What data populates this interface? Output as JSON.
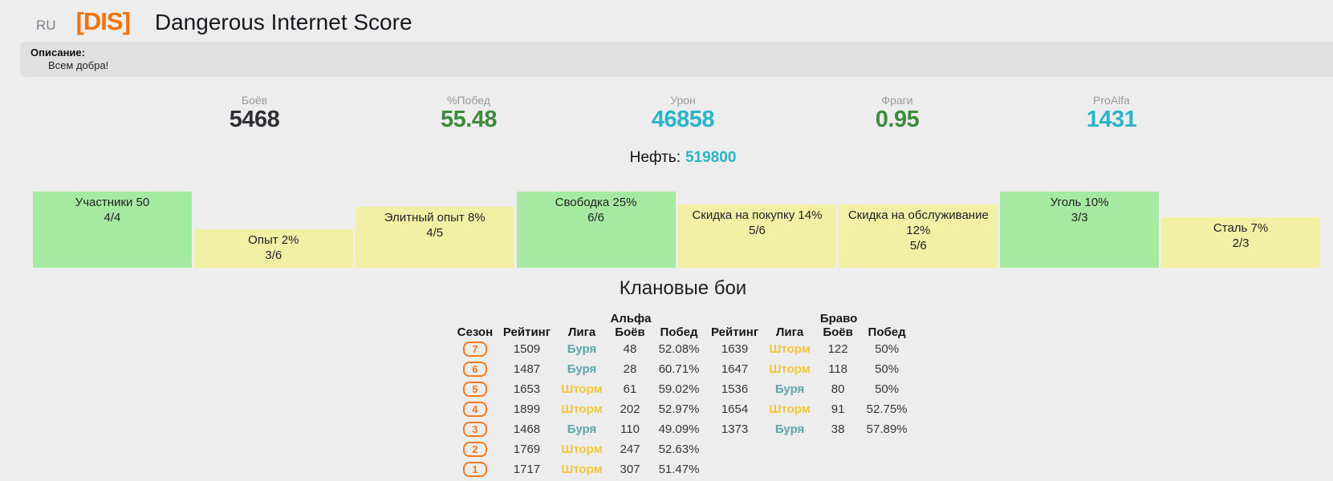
{
  "header": {
    "region": "RU",
    "clan_tag": "[DIS]",
    "clan_name": "Dangerous Internet Score",
    "tag_color": "#f2720c"
  },
  "description": {
    "label": "Описание:",
    "text": "Всем добра!"
  },
  "stats": [
    {
      "label": "Боёв",
      "value": "5468",
      "color": "#2f3136"
    },
    {
      "label": "%Побед",
      "value": "55.48",
      "color": "#3d8b3d"
    },
    {
      "label": "Урон",
      "value": "46858",
      "color": "#29b5c9"
    },
    {
      "label": "Фраги",
      "value": "0.95",
      "color": "#3d8b3d"
    },
    {
      "label": "ProAlfa",
      "value": "1431",
      "color": "#29b5c9"
    }
  ],
  "oil": {
    "label": "Нефть:",
    "value": "519800",
    "value_color": "#29b5c9"
  },
  "reserves": {
    "full_color": "#a6e9a0",
    "partial_color": "#f1f0a4",
    "items": [
      {
        "title": "Участники 50",
        "progress": "4/4",
        "ratio": 1
      },
      {
        "title": "Опыт 2%",
        "progress": "3/6",
        "ratio": 0.5
      },
      {
        "title": "Элитный опыт 8%",
        "progress": "4/5",
        "ratio": 0.8
      },
      {
        "title": "Свободка 25%",
        "progress": "6/6",
        "ratio": 1
      },
      {
        "title": "Скидка на покупку 14%",
        "progress": "5/6",
        "ratio": 0.833
      },
      {
        "title": "Скидка на обслуживание 12%",
        "progress": "5/6",
        "ratio": 0.833
      },
      {
        "title": "Уголь 10%",
        "progress": "3/3",
        "ratio": 1
      },
      {
        "title": "Сталь 7%",
        "progress": "2/3",
        "ratio": 0.667
      }
    ]
  },
  "clan_battles": {
    "title": "Клановые бои",
    "groups": {
      "alpha": "Альфа",
      "bravo": "Браво"
    },
    "columns": [
      "Сезон",
      "Рейтинг",
      "Лига",
      "Боёв",
      "Побед"
    ],
    "league_colors": {
      "Буря": "#61a6ac",
      "Шторм": "#f2c63e"
    },
    "season_badge_color": "#f2791f",
    "rows": [
      {
        "season": "7",
        "alpha": {
          "rating": "1509",
          "league": "Буря",
          "battles": "48",
          "wins": "52.08%"
        },
        "bravo": {
          "rating": "1639",
          "league": "Шторм",
          "battles": "122",
          "wins": "50%"
        }
      },
      {
        "season": "6",
        "alpha": {
          "rating": "1487",
          "league": "Буря",
          "battles": "28",
          "wins": "60.71%"
        },
        "bravo": {
          "rating": "1647",
          "league": "Шторм",
          "battles": "118",
          "wins": "50%"
        }
      },
      {
        "season": "5",
        "alpha": {
          "rating": "1653",
          "league": "Шторм",
          "battles": "61",
          "wins": "59.02%"
        },
        "bravo": {
          "rating": "1536",
          "league": "Буря",
          "battles": "80",
          "wins": "50%"
        }
      },
      {
        "season": "4",
        "alpha": {
          "rating": "1899",
          "league": "Шторм",
          "battles": "202",
          "wins": "52.97%"
        },
        "bravo": {
          "rating": "1654",
          "league": "Шторм",
          "battles": "91",
          "wins": "52.75%"
        }
      },
      {
        "season": "3",
        "alpha": {
          "rating": "1468",
          "league": "Буря",
          "battles": "110",
          "wins": "49.09%"
        },
        "bravo": {
          "rating": "1373",
          "league": "Буря",
          "battles": "38",
          "wins": "57.89%"
        }
      },
      {
        "season": "2",
        "alpha": {
          "rating": "1769",
          "league": "Шторм",
          "battles": "247",
          "wins": "52.63%"
        },
        "bravo": null
      },
      {
        "season": "1",
        "alpha": {
          "rating": "1717",
          "league": "Шторм",
          "battles": "307",
          "wins": "51.47%"
        },
        "bravo": null
      }
    ]
  }
}
